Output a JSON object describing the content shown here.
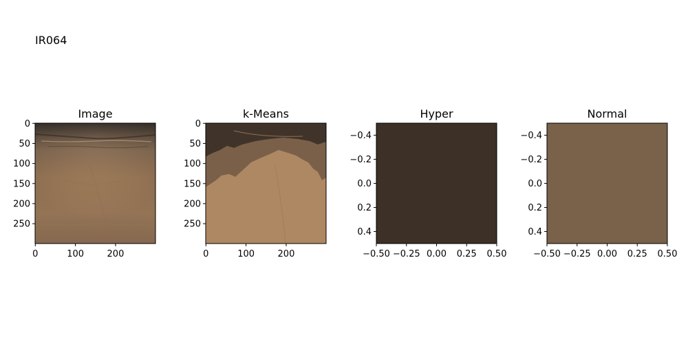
{
  "figure": {
    "title": "IR064"
  },
  "colors": {
    "skin_light": "#b48d68",
    "skin_mid": "#a27f60",
    "skin_dark": "#40372f",
    "kmeans_light": "#ae8862",
    "kmeans_mid": "#7b6049",
    "kmeans_dark": "#40342a",
    "hyper": "#3d3026",
    "normal": "#79614a"
  },
  "chart_data": [
    {
      "type": "image",
      "title": "Image",
      "x_ticks": [
        0,
        100,
        200
      ],
      "y_ticks": [
        0,
        50,
        100,
        150,
        200,
        250
      ],
      "xlim": [
        -0.5,
        299.5
      ],
      "ylim": [
        299.5,
        -0.5
      ]
    },
    {
      "type": "image",
      "title": "k-Means",
      "x_ticks": [
        0,
        100,
        200
      ],
      "y_ticks": [
        0,
        50,
        100,
        150,
        200,
        250
      ],
      "xlim": [
        -0.5,
        299.5
      ],
      "ylim": [
        299.5,
        -0.5
      ]
    },
    {
      "type": "image",
      "title": "Hyper",
      "x_ticks": [
        -0.5,
        -0.25,
        0.0,
        0.25,
        0.5
      ],
      "x_tick_labels": [
        "−0.50",
        "−0.25",
        "0.00",
        "0.25",
        "0.50"
      ],
      "y_ticks": [
        -0.4,
        -0.2,
        0.0,
        0.2,
        0.4
      ],
      "y_tick_labels": [
        "−0.4",
        "−0.2",
        "0.0",
        "0.2",
        "0.4"
      ],
      "xlim": [
        -0.5,
        0.5
      ],
      "ylim": [
        0.5,
        -0.5
      ],
      "fill": "#3d3026"
    },
    {
      "type": "image",
      "title": "Normal",
      "x_ticks": [
        -0.5,
        -0.25,
        0.0,
        0.25,
        0.5
      ],
      "x_tick_labels": [
        "−0.50",
        "−0.25",
        "0.00",
        "0.25",
        "0.50"
      ],
      "y_ticks": [
        -0.4,
        -0.2,
        0.0,
        0.2,
        0.4
      ],
      "y_tick_labels": [
        "−0.4",
        "−0.2",
        "0.0",
        "0.2",
        "0.4"
      ],
      "xlim": [
        -0.5,
        0.5
      ],
      "ylim": [
        0.5,
        -0.5
      ],
      "fill": "#79614a"
    }
  ]
}
